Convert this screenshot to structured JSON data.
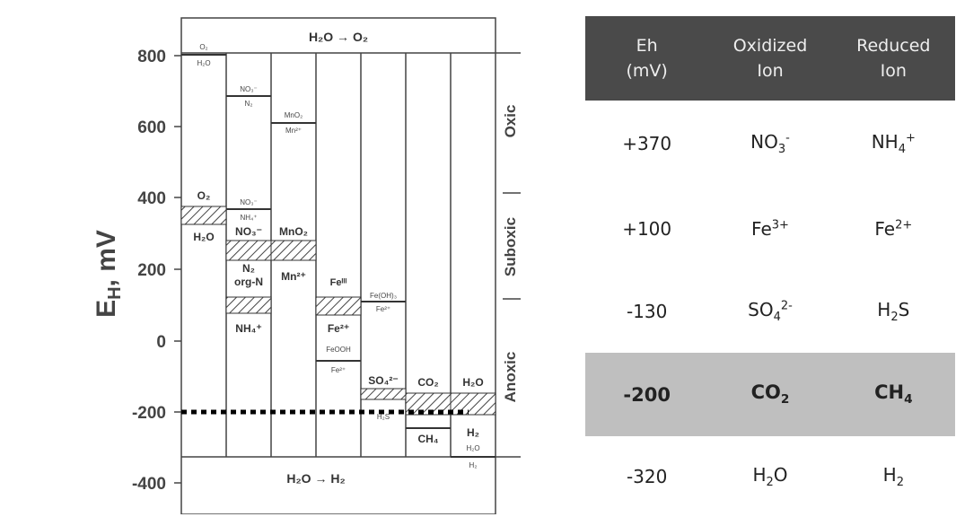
{
  "diagram": {
    "y_axis_label": "E",
    "y_axis_label_sub": "H",
    "y_axis_label_unit": ", mV",
    "y_ticks": [
      "800",
      "600",
      "400",
      "200",
      "0",
      "-200",
      "-400"
    ],
    "top_reaction": "H₂O → O₂",
    "bottom_reaction": "H₂O → H₂",
    "zones": [
      "Oxic",
      "Suboxic",
      "Anoxic"
    ],
    "species": {
      "o2_top": "O₂",
      "h2o_top": "H₂O",
      "no3_top": "NO₃⁻",
      "n2_top": "N₂",
      "mno2_top": "MnO₂",
      "mn2_top": "Mn²⁺",
      "o2": "O₂",
      "h2o": "H₂O",
      "no3_small": "NO₃⁻",
      "nh4_small": "NH₄⁺",
      "no3": "NO₃⁻",
      "n2": "N₂",
      "orgn": "org-N",
      "nh4": "NH₄⁺",
      "mno2": "MnO₂",
      "mn2": "Mn²⁺",
      "fe3": "Feᴵᴵᴵ",
      "fe2": "Fe²⁺",
      "feooh": "FeOOH",
      "fe2_small": "Fe²⁺",
      "feoh3": "Fe(OH)₃",
      "fe2_tiny": "Fe²⁺",
      "so4": "SO₄²⁻",
      "h2s": "H₂S",
      "co2": "CO₂",
      "ch4": "CH₄",
      "h2o_col": "H₂O",
      "h2": "H₂",
      "h2o_small": "H₂O",
      "h2_small": "H₂"
    }
  },
  "table": {
    "headers": [
      [
        "Eh",
        "(mV)"
      ],
      [
        "Oxidized",
        "Ion"
      ],
      [
        "Reduced",
        "Ion"
      ]
    ],
    "rows": [
      {
        "eh": "+370",
        "ox_base": "NO",
        "ox_sub": "3",
        "ox_sup": "-",
        "red_base": "NH",
        "red_sub": "4",
        "red_sup": "+"
      },
      {
        "eh": "+100",
        "ox_base": "Fe",
        "ox_sup": "3+",
        "red_base": "Fe",
        "red_sup": "2+"
      },
      {
        "eh": "-130",
        "ox_base": "SO",
        "ox_sub": "4",
        "ox_sup": "2-",
        "red_base": "H",
        "red_sub": "2",
        "red_tail": "S"
      },
      {
        "eh": "-200",
        "ox_base": "CO",
        "ox_sub": "2",
        "red_base": "CH",
        "red_sub": "4"
      },
      {
        "eh": "-320",
        "ox_base": "H",
        "ox_sub": "2",
        "ox_tail": "O",
        "red_base": "H",
        "red_sub": "2"
      }
    ]
  },
  "colors": {
    "header_bg": "#4a4a4a",
    "highlight_bg": "#bfbfbf"
  }
}
